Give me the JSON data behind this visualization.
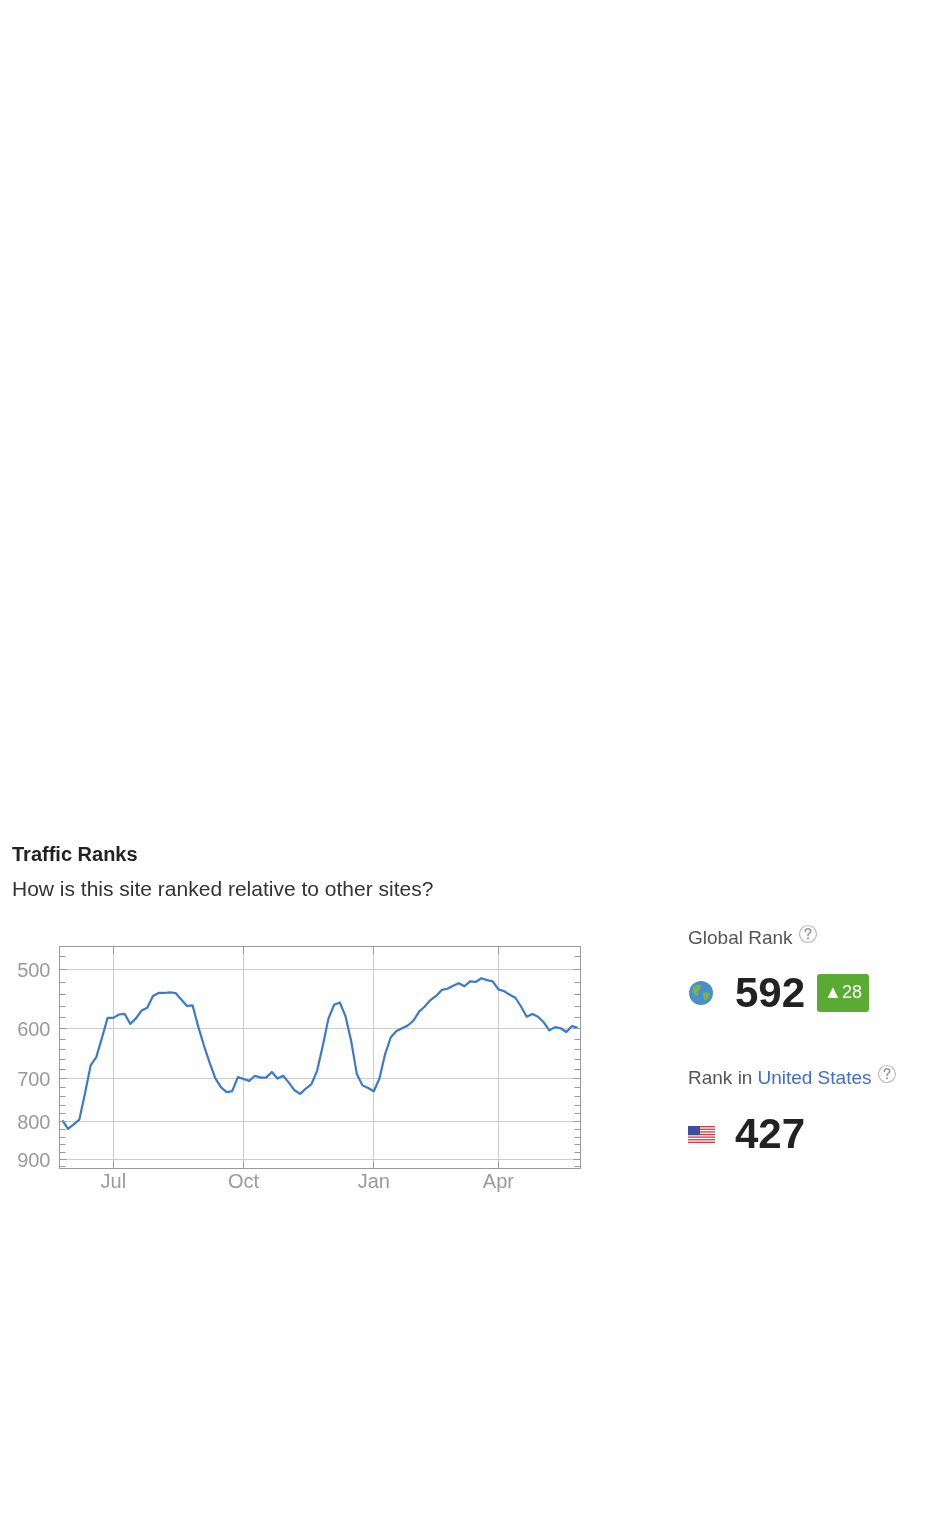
{
  "chart_data": [
    {
      "type": "line",
      "title": "Traffic Ranks",
      "subtitle": "How is this site ranked relative to other sites?",
      "categories": [
        null,
        null,
        null,
        null,
        null,
        null,
        null,
        null,
        null,
        "Jul",
        null,
        null,
        null,
        null,
        null,
        null,
        null,
        null,
        null,
        null,
        null,
        null,
        null,
        null,
        null,
        null,
        null,
        null,
        null,
        null,
        null,
        null,
        "Oct",
        null,
        null,
        null,
        null,
        null,
        null,
        null,
        null,
        null,
        null,
        null,
        null,
        null,
        null,
        null,
        null,
        null,
        null,
        null,
        null,
        null,
        null,
        "Jan",
        null,
        null,
        null,
        null,
        null,
        null,
        null,
        null,
        null,
        null,
        null,
        null,
        null,
        null,
        null,
        null,
        null,
        null,
        null,
        null,
        null,
        "Apr",
        null,
        null,
        null,
        null,
        null,
        null,
        null,
        null,
        null,
        null,
        null,
        null,
        null,
        null
      ],
      "series": [
        {
          "color": "#3b7ac9",
          "values": [
            797,
            818,
            807,
            795,
            733,
            672,
            655,
            617,
            580,
            580,
            574,
            573,
            591,
            581,
            567,
            562,
            542,
            537,
            537,
            536,
            537,
            548,
            559,
            558,
            596,
            632,
            666,
            699,
            719,
            730,
            728,
            697,
            701,
            705,
            694,
            698,
            698,
            686,
            700,
            694,
            709,
            726,
            734,
            722,
            712,
            683,
            632,
            581,
            557,
            553,
            577,
            623,
            690,
            715,
            721,
            728,
            700,
            649,
            616,
            604,
            599,
            594,
            585,
            569,
            560,
            549,
            542,
            532,
            530,
            525,
            521,
            526,
            518,
            519,
            513,
            516,
            518,
            531,
            534,
            540,
            545,
            560,
            578,
            573,
            578,
            588,
            603,
            597,
            599,
            606,
            595,
            598
          ]
        }
      ],
      "ylim": [
        925,
        465
      ],
      "yticks": [
        {
          "value": 480,
          "label": null
        },
        500,
        {
          "value": 520,
          "label": null
        },
        {
          "value": 540,
          "label": null
        },
        {
          "value": 560,
          "label": null
        },
        {
          "value": 580,
          "label": null
        },
        600,
        {
          "value": 620,
          "label": null
        },
        {
          "value": 640,
          "label": null
        },
        {
          "value": 660,
          "label": null
        },
        {
          "value": 680,
          "label": null
        },
        700,
        {
          "value": 720,
          "label": null
        },
        {
          "value": 740,
          "label": null
        },
        {
          "value": 760,
          "label": null
        },
        {
          "value": 780,
          "label": null
        },
        800,
        {
          "value": 820,
          "label": null
        },
        {
          "value": 840,
          "label": null
        },
        {
          "value": 860,
          "label": null
        },
        {
          "value": 880,
          "label": null
        },
        900,
        {
          "value": 920,
          "label": null
        }
      ],
      "log": true,
      "grid": true,
      "line_style": "solid"
    },
    {
      "type": "other",
      "annotations": [
        "Global Rank",
        "592",
        "▲28",
        "Rank in",
        "United States",
        "427"
      ]
    }
  ]
}
